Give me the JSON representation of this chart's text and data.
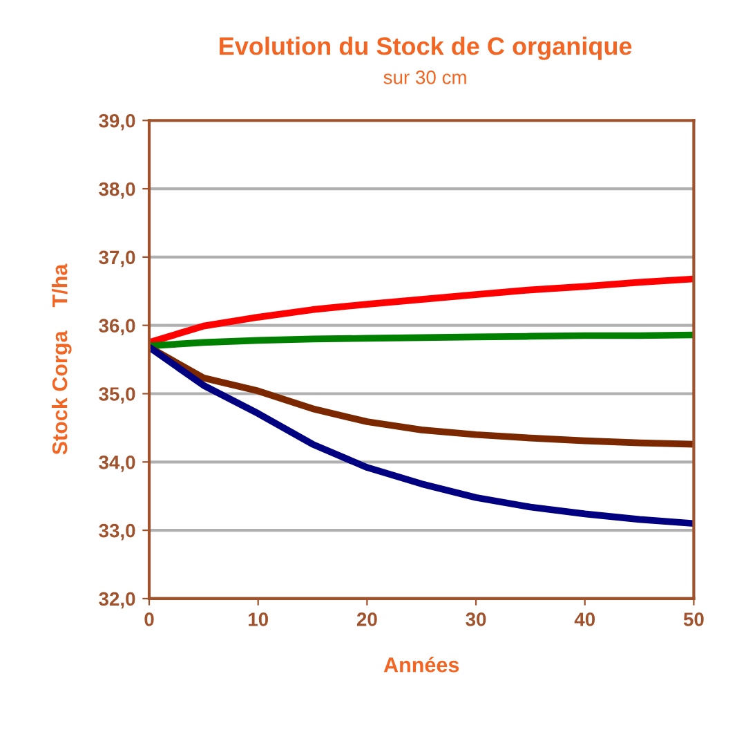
{
  "chart_data": {
    "type": "line",
    "title": "Evolution du Stock de C organique",
    "subtitle": "sur 30 cm",
    "xlabel": "Années",
    "ylabel": "Stock Corga    T/ha",
    "x": [
      0,
      5,
      10,
      15,
      20,
      25,
      30,
      35,
      40,
      45,
      50
    ],
    "series": [
      {
        "color": "#ff0000",
        "values": [
          35.75,
          35.99,
          36.12,
          36.23,
          36.31,
          36.38,
          36.45,
          36.52,
          36.57,
          36.63,
          36.68
        ]
      },
      {
        "color": "#008000",
        "values": [
          35.7,
          35.75,
          35.78,
          35.8,
          35.81,
          35.82,
          35.83,
          35.84,
          35.85,
          35.85,
          35.86
        ]
      },
      {
        "color": "#7b2800",
        "values": [
          35.68,
          35.23,
          35.04,
          34.78,
          34.59,
          34.47,
          34.4,
          34.35,
          34.31,
          34.28,
          34.26
        ]
      },
      {
        "color": "#000080",
        "values": [
          35.68,
          35.12,
          34.71,
          34.26,
          33.92,
          33.68,
          33.48,
          33.34,
          33.24,
          33.16,
          33.1
        ]
      }
    ],
    "xlim": [
      0,
      50
    ],
    "xticks": [
      0,
      10,
      20,
      30,
      40,
      50
    ],
    "ylim": [
      32,
      39
    ],
    "yticks": [
      {
        "value": 32,
        "label": "32,0"
      },
      {
        "value": 33,
        "label": "33,0"
      },
      {
        "value": 34,
        "label": "34,0"
      },
      {
        "value": 35,
        "label": "35,0"
      },
      {
        "value": 36,
        "label": "36,0"
      },
      {
        "value": 37,
        "label": "37,0"
      },
      {
        "value": 38,
        "label": "38,0"
      },
      {
        "value": 39,
        "label": "39,0"
      }
    ],
    "grid": "y",
    "line_style": "solid"
  }
}
